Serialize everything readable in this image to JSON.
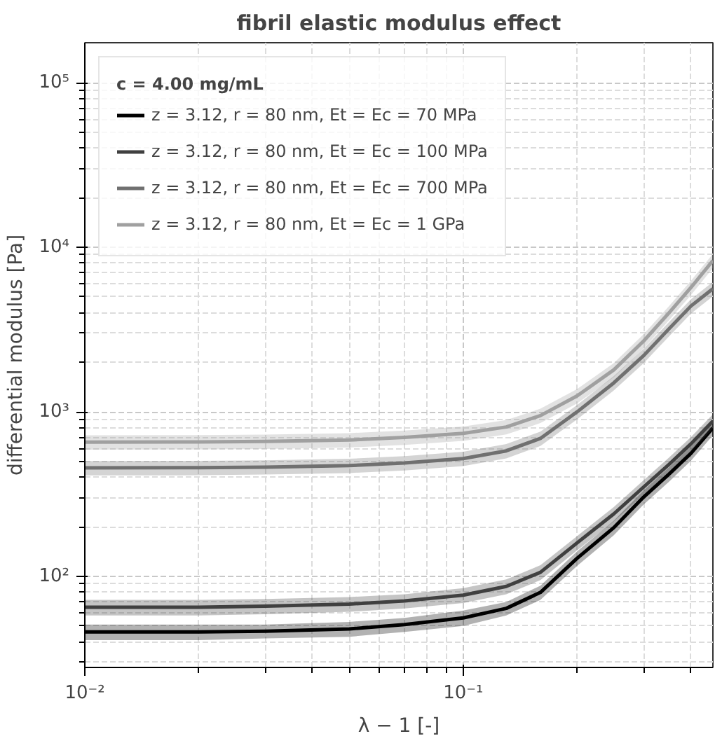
{
  "chart_data": {
    "type": "line",
    "title": "fibril elastic modulus effect",
    "xlabel": "λ − 1 [-]",
    "ylabel": "differential modulus [Pa]",
    "legend_title": "c = 4.00 mg/mL",
    "legend": "top left",
    "log": "xy",
    "grid": true,
    "marker": "none",
    "line_style": "solid",
    "xlim": [
      0.01,
      0.457
    ],
    "ylim": [
      28,
      175000
    ],
    "xticks": [
      {
        "value": 0.01,
        "label": "10⁻²"
      },
      {
        "value": 0.1,
        "label": "10⁻¹"
      }
    ],
    "yticks": [
      {
        "value": 100,
        "label": "10²"
      },
      {
        "value": 1000,
        "label": "10³"
      },
      {
        "value": 10000,
        "label": "10⁴"
      },
      {
        "value": 100000,
        "label": "10⁵"
      }
    ],
    "x": [
      0.01,
      0.02,
      0.03,
      0.05,
      0.07,
      0.1,
      0.13,
      0.16,
      0.2,
      0.25,
      0.3,
      0.35,
      0.4,
      0.457
    ],
    "series": [
      {
        "name": "z = 3.12, r = 80 nm, Et = Ec = 70 MPa",
        "color": "#000000",
        "values": [
          46,
          46,
          46.5,
          48,
          51,
          56,
          64,
          80,
          129,
          198,
          304,
          419,
          561,
          800
        ],
        "lower": [
          41,
          41,
          42,
          43,
          46,
          50,
          58,
          72,
          116,
          178,
          274,
          377,
          505,
          720
        ],
        "upper": [
          51,
          51,
          51,
          53,
          56,
          62,
          70,
          88,
          142,
          218,
          334,
          461,
          617,
          880
        ]
      },
      {
        "name": "z = 3.12, r = 80 nm, Et = Ec = 100 MPa",
        "color": "#404040",
        "values": [
          65,
          65,
          66,
          68,
          71,
          77,
          87,
          106,
          160,
          240,
          350,
          480,
          640,
          880
        ],
        "lower": [
          58,
          58,
          59,
          61,
          64,
          69,
          78,
          95,
          144,
          216,
          315,
          432,
          576,
          792
        ],
        "upper": [
          72,
          72,
          73,
          75,
          78,
          85,
          96,
          117,
          176,
          264,
          385,
          528,
          704,
          968
        ]
      },
      {
        "name": "z = 3.12, r = 80 nm, Et = Ec = 700 MPa",
        "color": "#707070",
        "values": [
          457,
          458,
          462,
          472,
          490,
          520,
          580,
          690,
          1000,
          1500,
          2200,
          3200,
          4400,
          5600
        ],
        "lower": [
          411,
          412,
          416,
          425,
          441,
          468,
          522,
          621,
          900,
          1350,
          1980,
          2880,
          3960,
          5040
        ],
        "upper": [
          503,
          504,
          508,
          519,
          539,
          572,
          638,
          759,
          1100,
          1650,
          2420,
          3520,
          4840,
          6160
        ]
      },
      {
        "name": "z = 3.12, r = 80 nm, Et = Ec = 1 GPa",
        "color": "#a0a0a0",
        "values": [
          655,
          657,
          662,
          675,
          700,
          740,
          810,
          950,
          1250,
          1800,
          2700,
          4000,
          5700,
          8300
        ],
        "lower": [
          590,
          591,
          596,
          608,
          630,
          666,
          729,
          855,
          1125,
          1620,
          2430,
          3600,
          5130,
          7470
        ],
        "upper": [
          721,
          723,
          728,
          743,
          770,
          814,
          891,
          1045,
          1375,
          1980,
          2970,
          4400,
          6270,
          9130
        ]
      }
    ]
  }
}
